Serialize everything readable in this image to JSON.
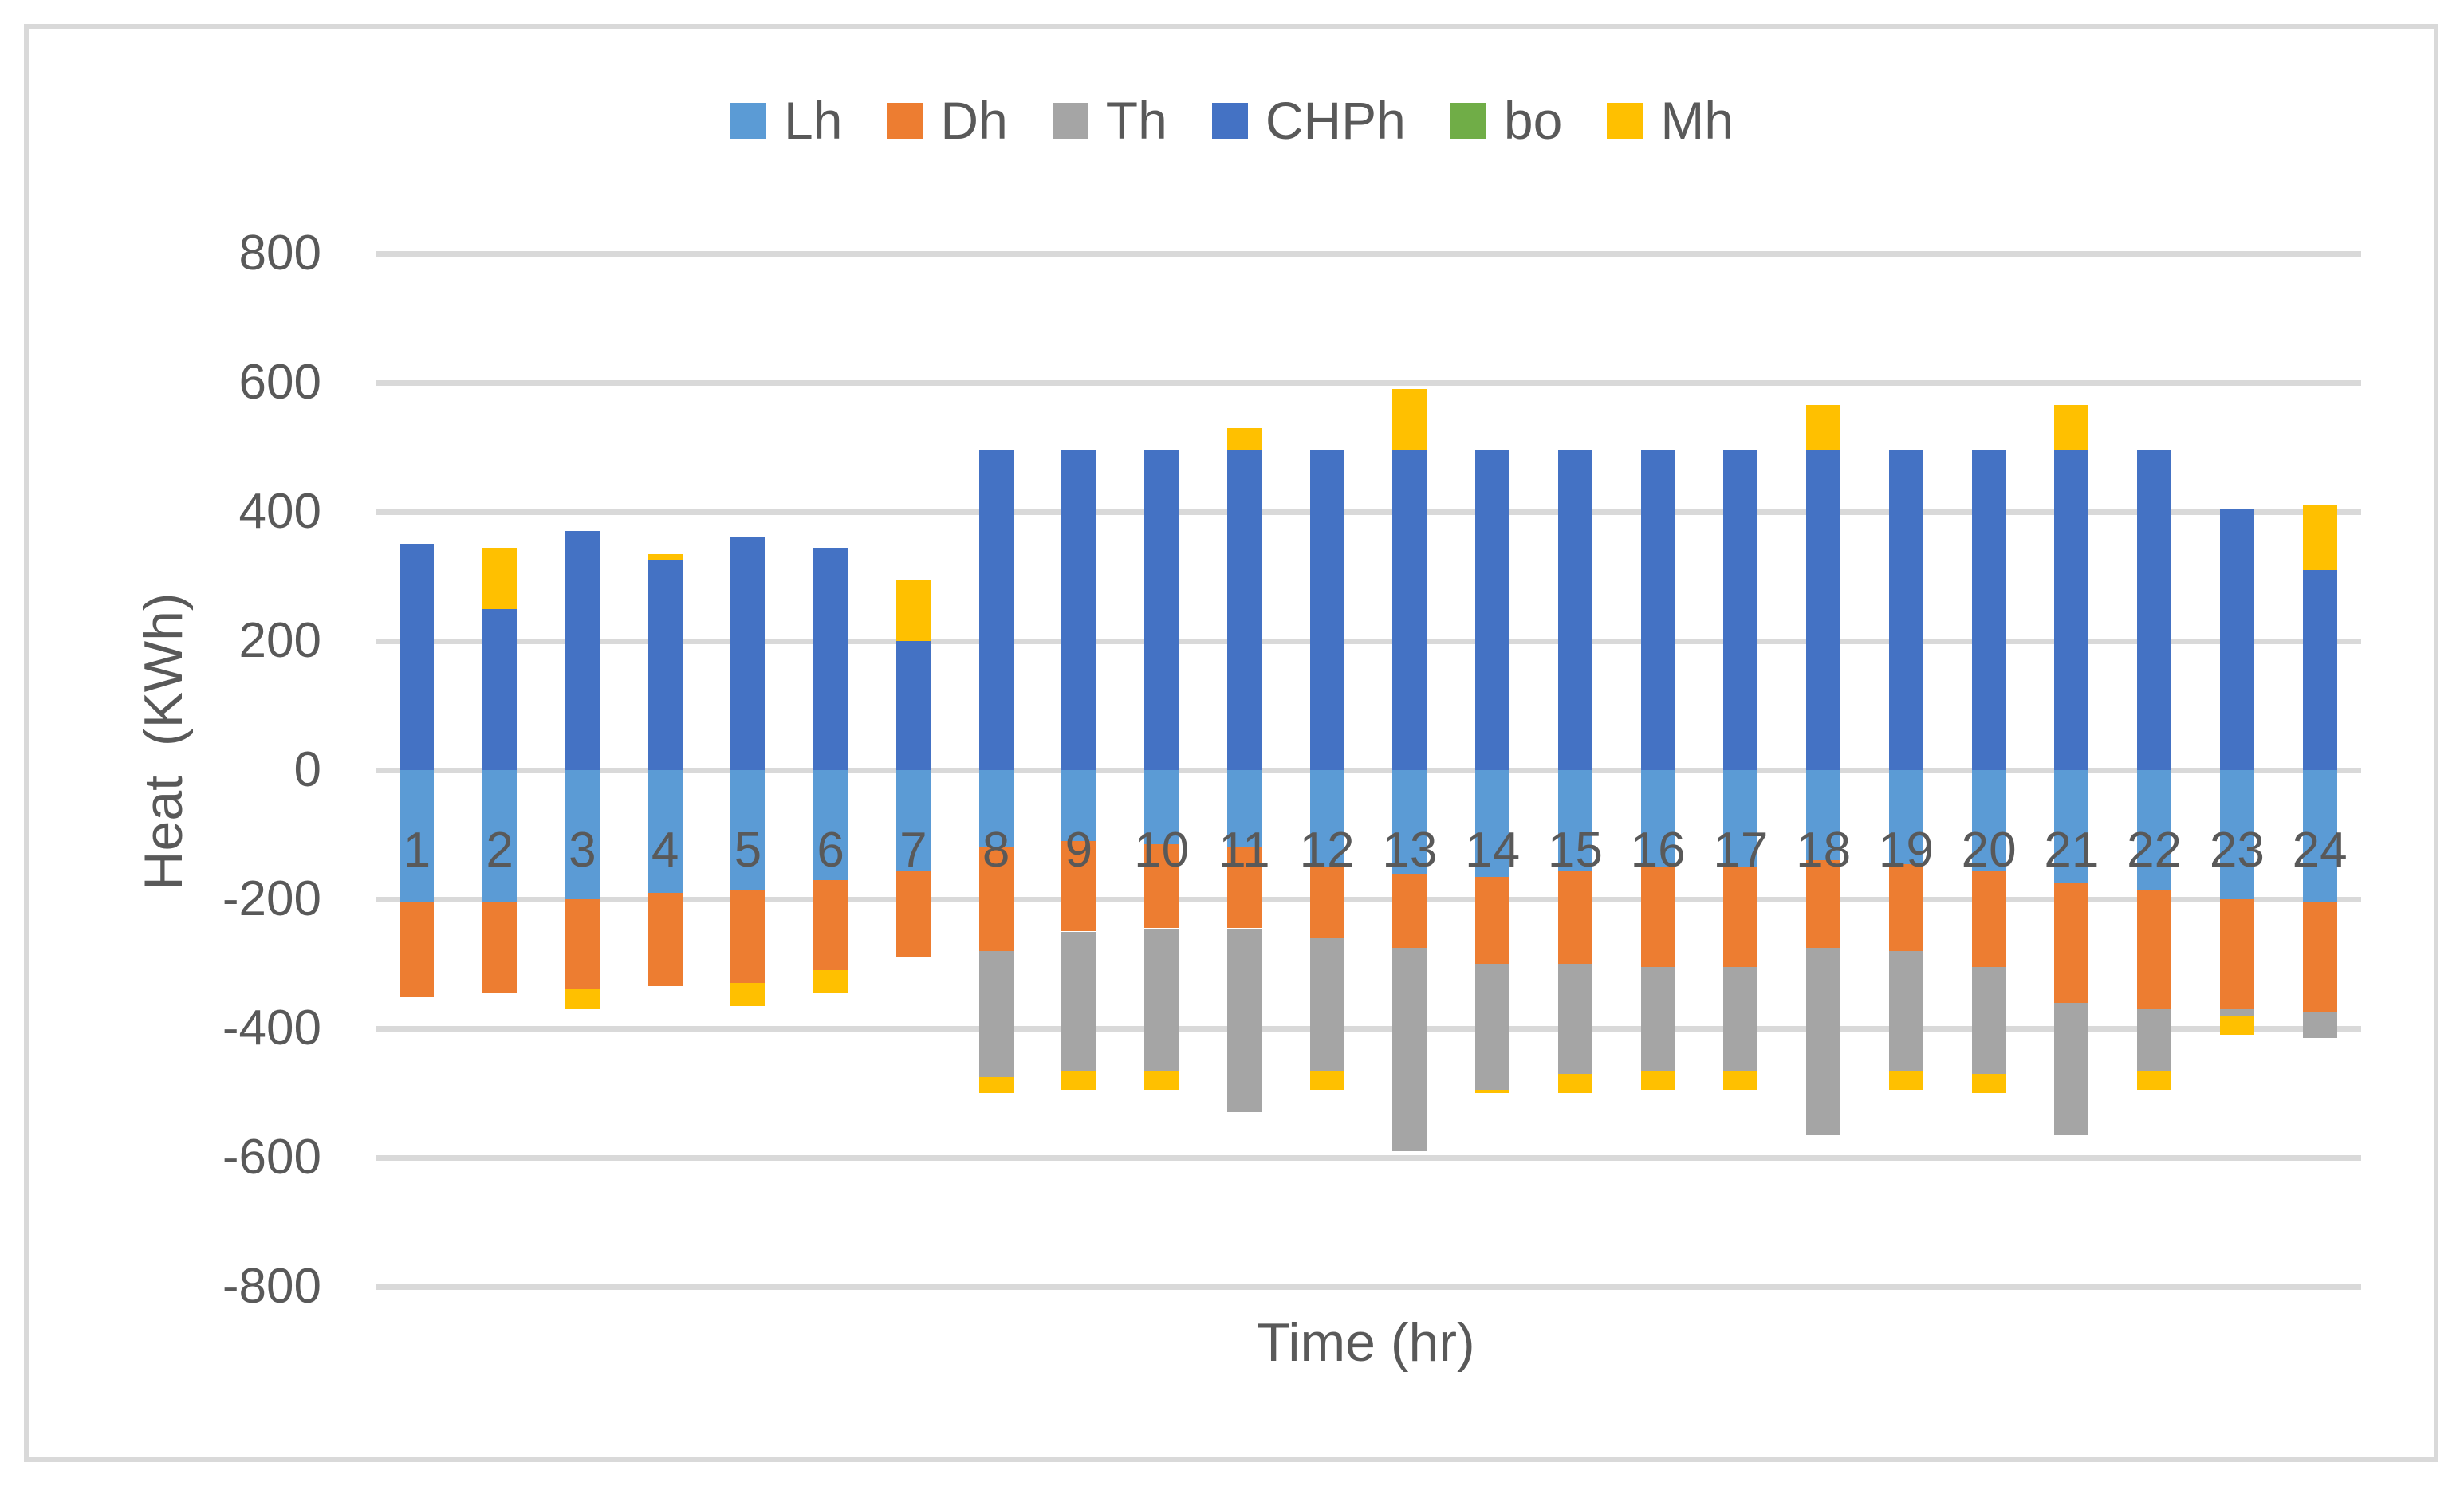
{
  "chart_data": {
    "type": "bar",
    "stacked": true,
    "orientation": "vertical",
    "xlabel": "Time (hr)",
    "ylabel": "Heat  (KWh)",
    "x": [
      1,
      2,
      3,
      4,
      5,
      6,
      7,
      8,
      9,
      10,
      11,
      12,
      13,
      14,
      15,
      16,
      17,
      18,
      19,
      20,
      21,
      22,
      23,
      24
    ],
    "x_tick_labels": [
      "1",
      "2",
      "3",
      "4",
      "5",
      "6",
      "7",
      "8",
      "9",
      "10",
      "11",
      "12",
      "13",
      "14",
      "15",
      "16",
      "17",
      "18",
      "19",
      "20",
      "21",
      "22",
      "23",
      "24"
    ],
    "y_ticks": [
      800,
      600,
      400,
      200,
      0,
      -200,
      -400,
      -600,
      -800
    ],
    "y_tick_labels": [
      "800",
      "600",
      "400",
      "200",
      "0",
      "-200",
      "-400",
      "-600",
      "-800"
    ],
    "ylim": [
      -800,
      800
    ],
    "grid": true,
    "legend_position": "top",
    "units": "KWh",
    "series": [
      {
        "name": "Lh",
        "color": "#5B9BD5",
        "values": [
          -205,
          -205,
          -200,
          -190,
          -185,
          -170,
          -155,
          -120,
          -110,
          -115,
          -120,
          -150,
          -160,
          -165,
          -155,
          -150,
          -150,
          -140,
          -145,
          -155,
          -175,
          -185,
          -200,
          -205
        ]
      },
      {
        "name": "Dh",
        "color": "#ED7D31",
        "values": [
          -145,
          -140,
          -140,
          -145,
          -145,
          -140,
          -135,
          -160,
          -140,
          -130,
          -125,
          -110,
          -115,
          -135,
          -145,
          -155,
          -155,
          -135,
          -135,
          -150,
          -185,
          -185,
          -170,
          -170
        ]
      },
      {
        "name": "Th",
        "color": "#A5A5A5",
        "values": [
          0,
          0,
          0,
          0,
          0,
          0,
          0,
          -195,
          -215,
          -220,
          -285,
          -205,
          -315,
          -195,
          -170,
          -160,
          -160,
          -290,
          -185,
          -165,
          -205,
          -95,
          -10,
          -40
        ]
      },
      {
        "name": "CHPh",
        "color": "#4472C4",
        "values": [
          350,
          250,
          370,
          325,
          360,
          345,
          200,
          495,
          495,
          495,
          495,
          495,
          495,
          495,
          495,
          495,
          495,
          495,
          495,
          495,
          495,
          495,
          405,
          310
        ]
      },
      {
        "name": "bo",
        "color": "#70AD47",
        "values": [
          0,
          0,
          0,
          0,
          0,
          0,
          0,
          0,
          0,
          0,
          0,
          0,
          0,
          0,
          0,
          0,
          0,
          0,
          0,
          0,
          0,
          0,
          0,
          0
        ]
      },
      {
        "name": "Mh",
        "color": "#FFC000",
        "values": [
          0,
          95,
          -30,
          10,
          -35,
          -35,
          95,
          -25,
          -30,
          -30,
          35,
          -30,
          95,
          -5,
          -30,
          -30,
          -30,
          70,
          -30,
          -30,
          70,
          -30,
          -30,
          100
        ]
      }
    ],
    "stack_order_positive": [
      "CHPh",
      "bo",
      "Mh"
    ],
    "stack_order_negative": [
      "Lh",
      "Dh",
      "Th",
      "Mh"
    ]
  },
  "legend": {
    "items": [
      {
        "label": "Lh",
        "color": "#5B9BD5"
      },
      {
        "label": "Dh",
        "color": "#ED7D31"
      },
      {
        "label": "Th",
        "color": "#A5A5A5"
      },
      {
        "label": "CHPh",
        "color": "#4472C4"
      },
      {
        "label": "bo",
        "color": "#70AD47"
      },
      {
        "label": "Mh",
        "color": "#FFC000"
      }
    ]
  },
  "axes": {
    "x_title": "Time (hr)",
    "y_title": "Heat  (KWh)"
  },
  "colors": {
    "background": "#FFFFFF",
    "gridline": "#D9D9D9",
    "frame_border": "#D9D9D9",
    "text": "#595959"
  }
}
